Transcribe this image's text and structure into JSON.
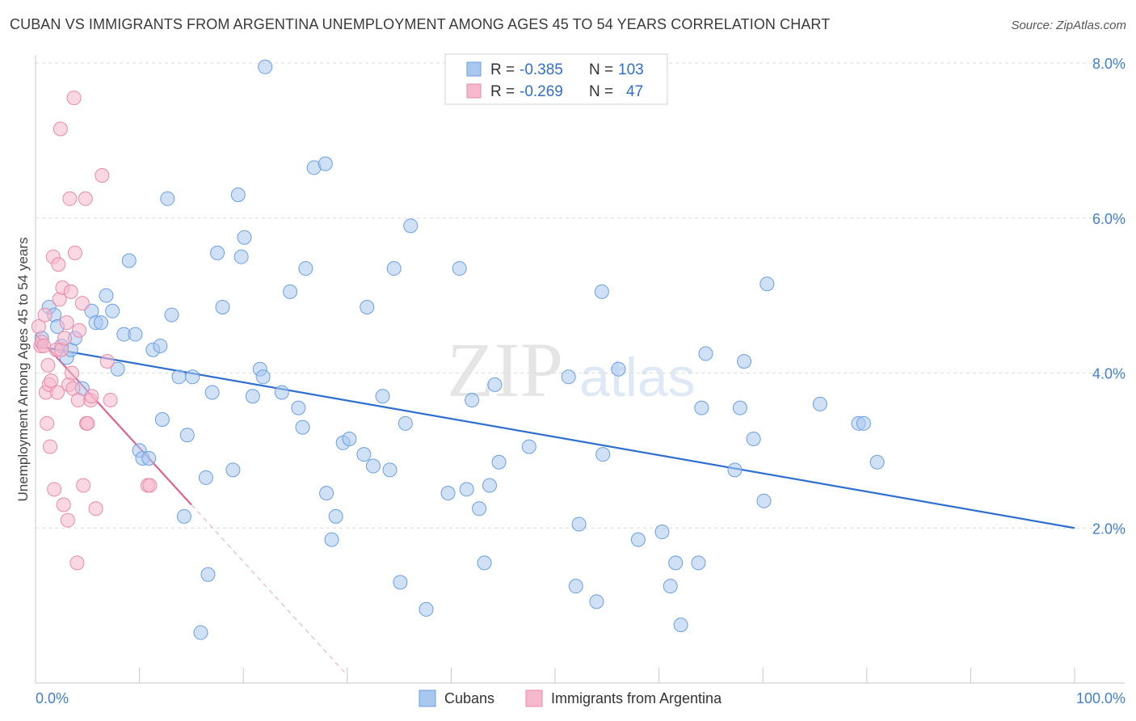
{
  "title": "CUBAN VS IMMIGRANTS FROM ARGENTINA UNEMPLOYMENT AMONG AGES 45 TO 54 YEARS CORRELATION CHART",
  "source": "Source: ZipAtlas.com",
  "watermark": {
    "zip": "ZIP",
    "atlas": "atlas"
  },
  "legend": {
    "rows": [
      {
        "r_label": "R =",
        "r_value": "-0.385",
        "n_label": "N =",
        "n_value": "103"
      },
      {
        "r_label": "R =",
        "r_value": "-0.269",
        "n_label": "N =",
        "n_value": "47"
      }
    ]
  },
  "bottom_legend": [
    "Cubans",
    "Immigrants from Argentina"
  ],
  "colors": {
    "blue_fill": "#a9c8ef",
    "blue_stroke": "#6a9fe0",
    "blue_line": "#2f6fd0",
    "pink_fill": "#f5b8cc",
    "pink_stroke": "#e88aa9",
    "pink_line": "#e0638d",
    "grid": "#dcdcdc",
    "axis": "#c8c8c8"
  },
  "chart_data": {
    "type": "scatter",
    "title": "CUBAN VS IMMIGRANTS FROM ARGENTINA UNEMPLOYMENT AMONG AGES 45 TO 54 YEARS CORRELATION CHART",
    "xlabel": "",
    "ylabel": "Unemployment Among Ages 45 to 54 years",
    "xlim": [
      0,
      100
    ],
    "ylim": [
      0,
      8.0
    ],
    "x_tick_labels": [
      "0.0%",
      "100.0%"
    ],
    "y_ticks": [
      2.0,
      4.0,
      6.0,
      8.0
    ],
    "y_tick_labels": [
      "2.0%",
      "4.0%",
      "6.0%",
      "8.0%"
    ],
    "series": [
      {
        "name": "Cubans",
        "color": "#6a9fe0",
        "r": -0.385,
        "n": 103,
        "trend": {
          "x": [
            0,
            100
          ],
          "y": [
            4.35,
            2.0
          ]
        },
        "points": [
          [
            0.6,
            4.45
          ],
          [
            1.3,
            4.85
          ],
          [
            1.8,
            4.75
          ],
          [
            2.1,
            4.6
          ],
          [
            2.5,
            4.35
          ],
          [
            3.0,
            4.2
          ],
          [
            3.4,
            4.3
          ],
          [
            3.8,
            4.45
          ],
          [
            4.5,
            3.8
          ],
          [
            5.4,
            4.8
          ],
          [
            5.8,
            4.65
          ],
          [
            6.3,
            4.65
          ],
          [
            6.8,
            5.0
          ],
          [
            7.4,
            4.8
          ],
          [
            7.9,
            4.05
          ],
          [
            8.5,
            4.5
          ],
          [
            9.0,
            5.45
          ],
          [
            9.6,
            4.5
          ],
          [
            10.0,
            3.0
          ],
          [
            10.3,
            2.9
          ],
          [
            10.9,
            2.9
          ],
          [
            11.3,
            4.3
          ],
          [
            12.0,
            4.35
          ],
          [
            12.2,
            3.4
          ],
          [
            12.7,
            6.25
          ],
          [
            13.1,
            4.75
          ],
          [
            13.8,
            3.95
          ],
          [
            14.3,
            2.15
          ],
          [
            14.6,
            3.2
          ],
          [
            15.1,
            3.95
          ],
          [
            16.4,
            2.65
          ],
          [
            16.6,
            1.4
          ],
          [
            15.9,
            0.65
          ],
          [
            17.0,
            3.75
          ],
          [
            17.5,
            5.55
          ],
          [
            18.0,
            4.85
          ],
          [
            19.0,
            2.75
          ],
          [
            19.5,
            6.3
          ],
          [
            19.8,
            5.5
          ],
          [
            20.1,
            5.75
          ],
          [
            20.9,
            3.7
          ],
          [
            21.6,
            4.05
          ],
          [
            21.9,
            3.95
          ],
          [
            22.1,
            7.95
          ],
          [
            23.7,
            3.75
          ],
          [
            24.5,
            5.05
          ],
          [
            25.3,
            3.55
          ],
          [
            25.7,
            3.3
          ],
          [
            26.0,
            5.35
          ],
          [
            26.8,
            6.65
          ],
          [
            27.9,
            6.7
          ],
          [
            28.0,
            2.45
          ],
          [
            28.5,
            1.85
          ],
          [
            28.9,
            2.15
          ],
          [
            29.6,
            3.1
          ],
          [
            30.2,
            3.15
          ],
          [
            31.6,
            2.95
          ],
          [
            31.9,
            4.85
          ],
          [
            32.5,
            2.8
          ],
          [
            33.4,
            3.7
          ],
          [
            34.1,
            2.75
          ],
          [
            34.5,
            5.35
          ],
          [
            35.1,
            1.3
          ],
          [
            35.6,
            3.35
          ],
          [
            36.1,
            5.9
          ],
          [
            37.6,
            0.95
          ],
          [
            39.7,
            2.45
          ],
          [
            40.8,
            5.35
          ],
          [
            41.5,
            2.5
          ],
          [
            42.0,
            3.65
          ],
          [
            42.7,
            2.25
          ],
          [
            43.2,
            1.55
          ],
          [
            43.7,
            2.55
          ],
          [
            44.2,
            3.85
          ],
          [
            44.6,
            2.85
          ],
          [
            47.5,
            3.05
          ],
          [
            51.3,
            3.95
          ],
          [
            52.0,
            1.25
          ],
          [
            52.3,
            2.05
          ],
          [
            54.0,
            1.05
          ],
          [
            54.5,
            5.05
          ],
          [
            54.6,
            2.95
          ],
          [
            56.1,
            4.05
          ],
          [
            58.0,
            1.85
          ],
          [
            60.3,
            1.95
          ],
          [
            61.1,
            1.25
          ],
          [
            61.6,
            1.55
          ],
          [
            62.1,
            0.75
          ],
          [
            63.8,
            1.55
          ],
          [
            64.1,
            3.55
          ],
          [
            64.5,
            4.25
          ],
          [
            67.3,
            2.75
          ],
          [
            67.8,
            3.55
          ],
          [
            68.2,
            4.15
          ],
          [
            69.1,
            3.15
          ],
          [
            70.1,
            2.35
          ],
          [
            70.4,
            5.15
          ],
          [
            75.5,
            3.6
          ],
          [
            79.2,
            3.35
          ],
          [
            79.7,
            3.35
          ],
          [
            81.0,
            2.85
          ]
        ]
      },
      {
        "name": "Immigrants from Argentina",
        "color": "#e88aa9",
        "r": -0.269,
        "n": 47,
        "trend": {
          "x": [
            0,
            15.0
          ],
          "y": [
            4.5,
            2.3
          ]
        },
        "trend_extension": {
          "x": [
            15.0,
            30.0
          ],
          "y": [
            2.3,
            0.1
          ]
        },
        "points": [
          [
            0.3,
            4.6
          ],
          [
            0.5,
            4.35
          ],
          [
            0.6,
            4.4
          ],
          [
            0.8,
            4.35
          ],
          [
            0.9,
            4.75
          ],
          [
            1.0,
            3.75
          ],
          [
            1.1,
            3.35
          ],
          [
            1.2,
            4.1
          ],
          [
            1.3,
            3.85
          ],
          [
            1.4,
            3.05
          ],
          [
            1.5,
            3.9
          ],
          [
            1.7,
            5.5
          ],
          [
            1.8,
            2.5
          ],
          [
            2.0,
            4.3
          ],
          [
            2.1,
            3.75
          ],
          [
            2.2,
            5.4
          ],
          [
            2.3,
            4.95
          ],
          [
            2.4,
            7.15
          ],
          [
            2.5,
            4.3
          ],
          [
            2.6,
            5.1
          ],
          [
            2.7,
            2.3
          ],
          [
            2.8,
            4.45
          ],
          [
            3.0,
            4.65
          ],
          [
            3.1,
            2.1
          ],
          [
            3.2,
            3.85
          ],
          [
            3.4,
            5.05
          ],
          [
            3.5,
            4.0
          ],
          [
            3.6,
            3.8
          ],
          [
            3.7,
            7.55
          ],
          [
            3.8,
            5.55
          ],
          [
            4.0,
            1.55
          ],
          [
            4.1,
            3.65
          ],
          [
            4.2,
            4.55
          ],
          [
            4.5,
            4.9
          ],
          [
            4.6,
            2.55
          ],
          [
            4.9,
            3.35
          ],
          [
            5.0,
            3.35
          ],
          [
            5.3,
            3.65
          ],
          [
            5.4,
            3.7
          ],
          [
            6.4,
            6.55
          ],
          [
            5.8,
            2.25
          ],
          [
            4.8,
            6.25
          ],
          [
            6.9,
            4.15
          ],
          [
            7.2,
            3.65
          ],
          [
            10.8,
            2.55
          ],
          [
            11.0,
            2.55
          ],
          [
            3.3,
            6.25
          ]
        ]
      }
    ]
  }
}
